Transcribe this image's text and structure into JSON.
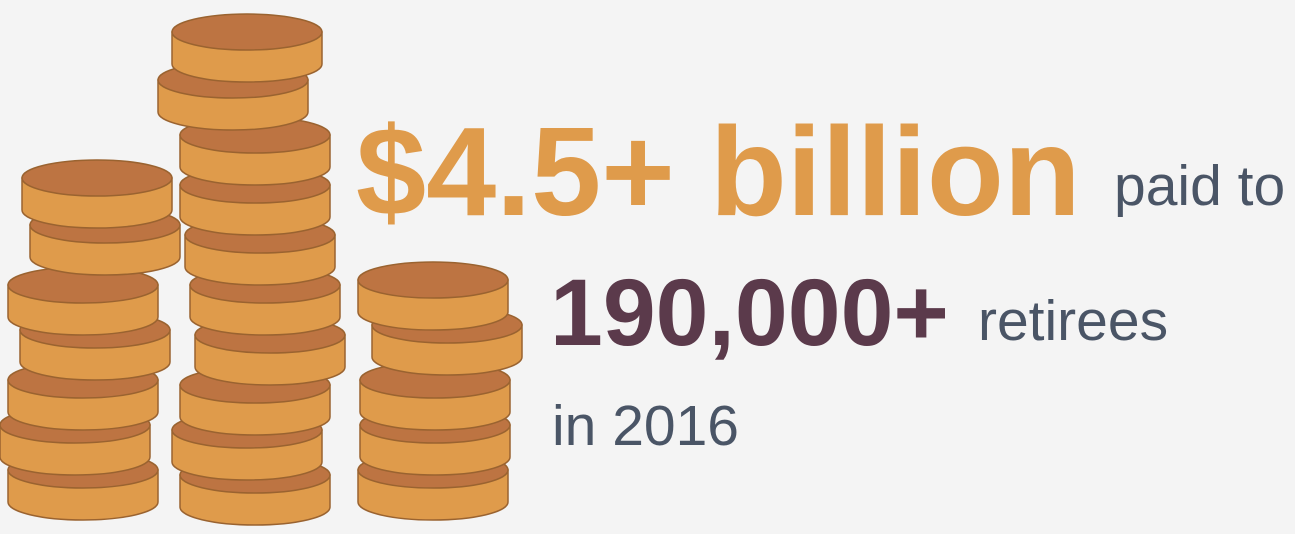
{
  "headline": {
    "amount": "$4.5+ billion",
    "amount_suffix": "paid to",
    "count": "190,000+",
    "count_suffix": "retirees",
    "period": "in 2016"
  }
}
